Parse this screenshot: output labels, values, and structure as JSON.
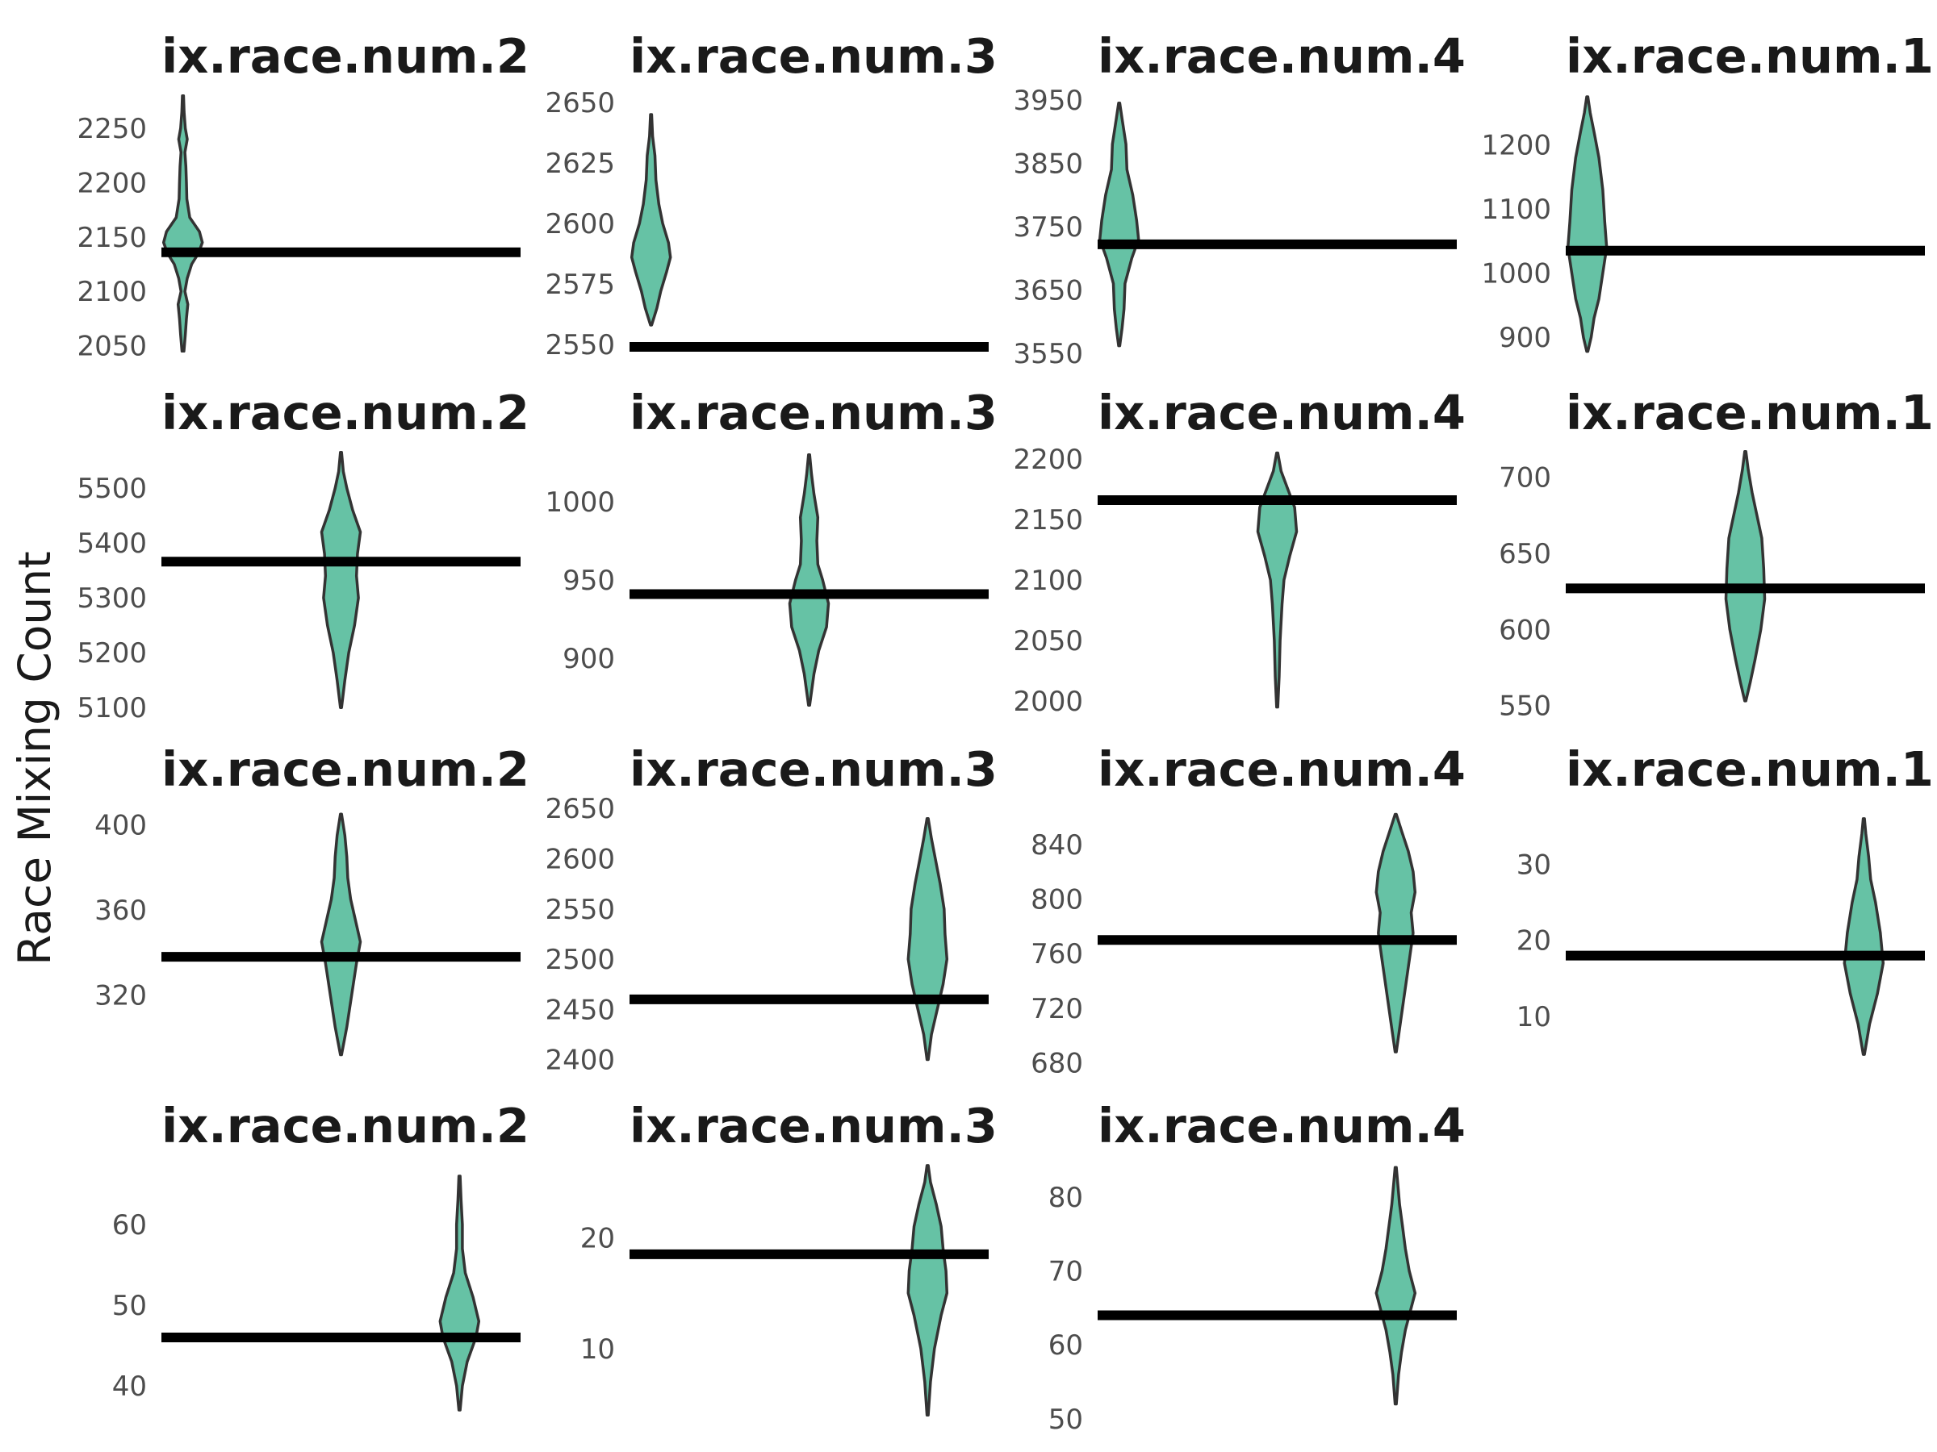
{
  "colors": {
    "violin_fill": "#66c2a5",
    "violin_stroke": "#333333",
    "reference_line": "#000000"
  },
  "chart_data": {
    "type": "violin",
    "ylabel": "Race Mixing Count",
    "legend": "none",
    "grid": false,
    "panels": [
      {
        "title": "ix.race.num.2",
        "ylim": [
          2040,
          2285
        ],
        "yticks": [
          2050,
          2100,
          2150,
          2200,
          2250
        ],
        "position": "left",
        "line": 2136,
        "density": [
          [
            2045,
            0.05
          ],
          [
            2060,
            0.12
          ],
          [
            2075,
            0.18
          ],
          [
            2088,
            0.25
          ],
          [
            2100,
            0.1
          ],
          [
            2112,
            0.22
          ],
          [
            2125,
            0.45
          ],
          [
            2135,
            0.8
          ],
          [
            2145,
            1.0
          ],
          [
            2155,
            0.85
          ],
          [
            2168,
            0.35
          ],
          [
            2185,
            0.2
          ],
          [
            2200,
            0.18
          ],
          [
            2215,
            0.15
          ],
          [
            2228,
            0.1
          ],
          [
            2240,
            0.22
          ],
          [
            2250,
            0.12
          ],
          [
            2265,
            0.06
          ],
          [
            2280,
            0.03
          ]
        ]
      },
      {
        "title": "ix.race.num.3",
        "ylim": [
          2545,
          2655
        ],
        "yticks": [
          2550,
          2575,
          2600,
          2625,
          2650
        ],
        "position": "left",
        "line": 2549,
        "density": [
          [
            2558,
            0.03
          ],
          [
            2565,
            0.3
          ],
          [
            2572,
            0.5
          ],
          [
            2580,
            0.8
          ],
          [
            2586,
            1.0
          ],
          [
            2592,
            0.9
          ],
          [
            2600,
            0.6
          ],
          [
            2608,
            0.4
          ],
          [
            2618,
            0.25
          ],
          [
            2628,
            0.2
          ],
          [
            2636,
            0.08
          ],
          [
            2645,
            0.03
          ]
        ]
      },
      {
        "title": "ix.race.num.4",
        "ylim": [
          3545,
          3965
        ],
        "yticks": [
          3550,
          3650,
          3750,
          3850,
          3950
        ],
        "position": "left",
        "line": 3722,
        "density": [
          [
            3562,
            0.03
          ],
          [
            3590,
            0.15
          ],
          [
            3620,
            0.25
          ],
          [
            3660,
            0.3
          ],
          [
            3700,
            0.65
          ],
          [
            3730,
            1.0
          ],
          [
            3760,
            0.9
          ],
          [
            3800,
            0.7
          ],
          [
            3840,
            0.4
          ],
          [
            3880,
            0.35
          ],
          [
            3920,
            0.15
          ],
          [
            3945,
            0.03
          ]
        ]
      },
      {
        "title": "ix.race.num.1",
        "ylim": [
          870,
          1285
        ],
        "yticks": [
          900,
          1000,
          1100,
          1200
        ],
        "position": "left",
        "line": 1035,
        "density": [
          [
            878,
            0.03
          ],
          [
            900,
            0.2
          ],
          [
            930,
            0.35
          ],
          [
            960,
            0.6
          ],
          [
            1000,
            0.8
          ],
          [
            1040,
            1.0
          ],
          [
            1080,
            0.9
          ],
          [
            1130,
            0.8
          ],
          [
            1180,
            0.6
          ],
          [
            1220,
            0.35
          ],
          [
            1250,
            0.15
          ],
          [
            1275,
            0.03
          ]
        ]
      },
      {
        "title": "ix.race.num.2",
        "ylim": [
          5090,
          5575
        ],
        "yticks": [
          5100,
          5200,
          5300,
          5400,
          5500
        ],
        "position": "center",
        "line": 5366,
        "density": [
          [
            5100,
            0.03
          ],
          [
            5150,
            0.2
          ],
          [
            5200,
            0.4
          ],
          [
            5250,
            0.7
          ],
          [
            5300,
            0.9
          ],
          [
            5340,
            0.8
          ],
          [
            5380,
            0.85
          ],
          [
            5420,
            1.0
          ],
          [
            5460,
            0.6
          ],
          [
            5500,
            0.3
          ],
          [
            5530,
            0.12
          ],
          [
            5565,
            0.03
          ]
        ]
      },
      {
        "title": "ix.race.num.3",
        "ylim": [
          865,
          1035
        ],
        "yticks": [
          900,
          950,
          1000
        ],
        "position": "center",
        "line": 941,
        "density": [
          [
            870,
            0.03
          ],
          [
            890,
            0.25
          ],
          [
            905,
            0.5
          ],
          [
            920,
            0.9
          ],
          [
            935,
            1.0
          ],
          [
            950,
            0.7
          ],
          [
            960,
            0.45
          ],
          [
            975,
            0.4
          ],
          [
            990,
            0.45
          ],
          [
            1005,
            0.25
          ],
          [
            1018,
            0.12
          ],
          [
            1030,
            0.03
          ]
        ]
      },
      {
        "title": "ix.race.num.4",
        "ylim": [
          1990,
          2210
        ],
        "yticks": [
          2000,
          2050,
          2100,
          2150,
          2200
        ],
        "position": "center",
        "line": 2166,
        "density": [
          [
            1995,
            0.03
          ],
          [
            2020,
            0.1
          ],
          [
            2050,
            0.15
          ],
          [
            2080,
            0.25
          ],
          [
            2100,
            0.35
          ],
          [
            2120,
            0.65
          ],
          [
            2140,
            1.0
          ],
          [
            2160,
            0.9
          ],
          [
            2175,
            0.55
          ],
          [
            2190,
            0.2
          ],
          [
            2205,
            0.03
          ]
        ]
      },
      {
        "title": "ix.race.num.1",
        "ylim": [
          545,
          720
        ],
        "yticks": [
          550,
          600,
          650,
          700
        ],
        "position": "center",
        "line": 627,
        "density": [
          [
            553,
            0.03
          ],
          [
            565,
            0.25
          ],
          [
            580,
            0.5
          ],
          [
            600,
            0.8
          ],
          [
            620,
            1.0
          ],
          [
            640,
            0.95
          ],
          [
            660,
            0.85
          ],
          [
            675,
            0.6
          ],
          [
            690,
            0.35
          ],
          [
            705,
            0.15
          ],
          [
            717,
            0.03
          ]
        ]
      },
      {
        "title": "ix.race.num.2",
        "ylim": [
          285,
          410
        ],
        "yticks": [
          320,
          360,
          400
        ],
        "position": "center",
        "line": 338,
        "density": [
          [
            292,
            0.03
          ],
          [
            305,
            0.3
          ],
          [
            320,
            0.55
          ],
          [
            335,
            0.8
          ],
          [
            345,
            1.0
          ],
          [
            355,
            0.75
          ],
          [
            365,
            0.5
          ],
          [
            375,
            0.35
          ],
          [
            385,
            0.3
          ],
          [
            395,
            0.2
          ],
          [
            405,
            0.03
          ]
        ]
      },
      {
        "title": "ix.race.num.3",
        "ylim": [
          2390,
          2655
        ],
        "yticks": [
          2400,
          2450,
          2500,
          2550,
          2600,
          2650
        ],
        "position": "right",
        "line": 2460,
        "density": [
          [
            2400,
            0.03
          ],
          [
            2425,
            0.2
          ],
          [
            2450,
            0.5
          ],
          [
            2475,
            0.8
          ],
          [
            2500,
            1.0
          ],
          [
            2525,
            0.9
          ],
          [
            2550,
            0.85
          ],
          [
            2575,
            0.65
          ],
          [
            2600,
            0.4
          ],
          [
            2620,
            0.2
          ],
          [
            2640,
            0.03
          ]
        ]
      },
      {
        "title": "ix.race.num.4",
        "ylim": [
          675,
          870
        ],
        "yticks": [
          680,
          720,
          760,
          800,
          840
        ],
        "position": "right",
        "line": 770,
        "density": [
          [
            688,
            0.03
          ],
          [
            710,
            0.25
          ],
          [
            740,
            0.55
          ],
          [
            760,
            0.75
          ],
          [
            775,
            0.9
          ],
          [
            790,
            0.8
          ],
          [
            805,
            1.0
          ],
          [
            820,
            0.9
          ],
          [
            835,
            0.65
          ],
          [
            850,
            0.3
          ],
          [
            862,
            0.03
          ]
        ]
      },
      {
        "title": "ix.race.num.1",
        "ylim": [
          3,
          38
        ],
        "yticks": [
          10,
          20,
          30
        ],
        "position": "right",
        "line": 18,
        "density": [
          [
            5,
            0.03
          ],
          [
            9,
            0.3
          ],
          [
            13,
            0.7
          ],
          [
            17,
            1.0
          ],
          [
            21,
            0.85
          ],
          [
            25,
            0.6
          ],
          [
            28,
            0.35
          ],
          [
            31,
            0.25
          ],
          [
            34,
            0.1
          ],
          [
            36,
            0.03
          ]
        ]
      },
      {
        "title": "ix.race.num.2",
        "ylim": [
          35,
          68
        ],
        "yticks": [
          40,
          50,
          60
        ],
        "position": "right",
        "line": 46,
        "density": [
          [
            37,
            0.03
          ],
          [
            40,
            0.15
          ],
          [
            43,
            0.4
          ],
          [
            46,
            0.85
          ],
          [
            48,
            1.0
          ],
          [
            51,
            0.7
          ],
          [
            54,
            0.3
          ],
          [
            57,
            0.15
          ],
          [
            60,
            0.15
          ],
          [
            63,
            0.08
          ],
          [
            66,
            0.03
          ]
        ]
      },
      {
        "title": "ix.race.num.3",
        "ylim": [
          3,
          27
        ],
        "yticks": [
          10,
          20
        ],
        "position": "right",
        "line": 18.5,
        "density": [
          [
            4,
            0.03
          ],
          [
            7,
            0.15
          ],
          [
            10,
            0.35
          ],
          [
            13,
            0.7
          ],
          [
            15,
            1.0
          ],
          [
            17,
            0.95
          ],
          [
            19,
            0.8
          ],
          [
            21,
            0.7
          ],
          [
            23,
            0.45
          ],
          [
            25,
            0.15
          ],
          [
            26.5,
            0.03
          ]
        ]
      },
      {
        "title": "ix.race.num.4",
        "ylim": [
          49,
          85
        ],
        "yticks": [
          50,
          60,
          70,
          80
        ],
        "position": "right",
        "line": 64,
        "density": [
          [
            52,
            0.03
          ],
          [
            56,
            0.15
          ],
          [
            59,
            0.3
          ],
          [
            62,
            0.5
          ],
          [
            65,
            0.8
          ],
          [
            67,
            1.0
          ],
          [
            70,
            0.7
          ],
          [
            73,
            0.5
          ],
          [
            76,
            0.35
          ],
          [
            79,
            0.2
          ],
          [
            84,
            0.03
          ]
        ]
      }
    ]
  }
}
